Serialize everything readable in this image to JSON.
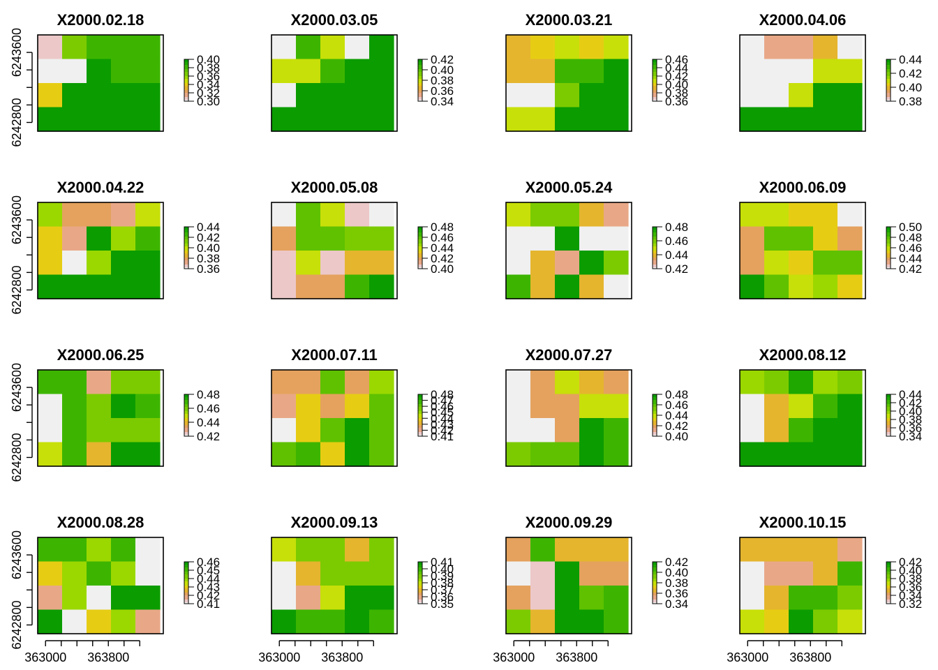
{
  "palette": [
    "#F0F0F0",
    "#ECC8C8",
    "#E8A887",
    "#E4A25E",
    "#E5B52E",
    "#E6CD14",
    "#C7E009",
    "#9BD800",
    "#7CCB00",
    "#5FC100",
    "#3DB500",
    "#1EA800",
    "#0B9C00"
  ],
  "chart_data": {
    "type": "heatmap",
    "layout": {
      "rows": 4,
      "cols": 4
    },
    "xlim": [
      362900,
      364500
    ],
    "ylim": [
      6242700,
      6243800
    ],
    "x_ticks": [
      363000,
      363200,
      363400,
      363600,
      363800,
      364000,
      364200
    ],
    "x_tick_labels": [
      "363000",
      "363800"
    ],
    "y_ticks": [
      6242800,
      6243000,
      6243200,
      6243400,
      6243600
    ],
    "y_tick_labels": [
      "6242800",
      "6243600"
    ],
    "panels": [
      {
        "title": "X2000.02.18",
        "legend": [
          "0.40",
          "0.38",
          "0.36",
          "0.34",
          "0.32",
          "0.30"
        ],
        "values": [
          [
            0.31,
            0.37,
            0.38,
            0.38,
            0.38
          ],
          [
            0.3,
            0.3,
            0.4,
            0.38,
            0.38
          ],
          [
            0.34,
            0.41,
            0.4,
            0.45,
            0.46
          ],
          [
            0.42,
            0.41,
            0.46,
            0.48,
            0.46
          ]
        ]
      },
      {
        "title": "X2000.03.05",
        "legend": [
          "0.42",
          "0.40",
          "0.38",
          "0.36",
          "0.34"
        ],
        "values": [
          [
            0.33,
            0.41,
            0.38,
            0.34,
            0.42
          ],
          [
            0.38,
            0.38,
            0.41,
            0.45,
            0.46
          ],
          [
            0.34,
            0.45,
            0.45,
            0.44,
            0.44
          ],
          [
            0.46,
            0.46,
            0.46,
            0.46,
            0.43
          ]
        ]
      },
      {
        "title": "X2000.03.21",
        "legend": [
          "0.46",
          "0.44",
          "0.42",
          "0.40",
          "0.38",
          "0.36"
        ],
        "values": [
          [
            0.39,
            0.4,
            0.41,
            0.4,
            0.41
          ],
          [
            0.39,
            0.39,
            0.44,
            0.44,
            0.46
          ],
          [
            0.35,
            0.35,
            0.43,
            0.48,
            0.46
          ],
          [
            0.41,
            0.41,
            0.46,
            0.47,
            0.47
          ]
        ]
      },
      {
        "title": "X2000.04.06",
        "legend": [
          "0.44",
          "0.42",
          "0.40",
          "0.38"
        ],
        "values": [
          [
            0.37,
            0.39,
            0.39,
            0.4,
            0.38
          ],
          [
            0.37,
            0.38,
            0.38,
            0.41,
            0.41
          ],
          [
            0.37,
            0.38,
            0.41,
            0.44,
            0.44
          ],
          [
            0.46,
            0.45,
            0.45,
            0.47,
            0.46
          ]
        ]
      },
      {
        "title": "X2000.04.22",
        "legend": [
          "0.44",
          "0.42",
          "0.40",
          "0.38",
          "0.36"
        ],
        "values": [
          [
            0.41,
            0.38,
            0.38,
            0.37,
            0.4
          ],
          [
            0.39,
            0.37,
            0.44,
            0.41,
            0.43
          ],
          [
            0.39,
            0.36,
            0.41,
            0.44,
            0.46
          ],
          [
            0.46,
            0.44,
            0.44,
            0.47,
            0.47
          ]
        ]
      },
      {
        "title": "X2000.05.08",
        "legend": [
          "0.48",
          "0.46",
          "0.44",
          "0.42",
          "0.40"
        ],
        "values": [
          [
            0.39,
            0.46,
            0.44,
            0.41,
            0.4
          ],
          [
            0.42,
            0.46,
            0.46,
            0.45,
            0.45
          ],
          [
            0.41,
            0.44,
            0.41,
            0.43,
            0.43
          ],
          [
            0.41,
            0.42,
            0.42,
            0.47,
            0.48
          ]
        ]
      },
      {
        "title": "X2000.05.24",
        "legend": [
          "0.48",
          "0.46",
          "0.44",
          "0.42"
        ],
        "values": [
          [
            0.45,
            0.46,
            0.46,
            0.44,
            0.43
          ],
          [
            0.42,
            0.4,
            0.48,
            0.42,
            0.42
          ],
          [
            0.42,
            0.44,
            0.43,
            0.48,
            0.46
          ],
          [
            0.47,
            0.44,
            0.48,
            0.44,
            0.42
          ]
        ]
      },
      {
        "title": "X2000.06.09",
        "legend": [
          "0.50",
          "0.48",
          "0.46",
          "0.44",
          "0.42"
        ],
        "values": [
          [
            0.46,
            0.46,
            0.45,
            0.45,
            0.41
          ],
          [
            0.44,
            0.48,
            0.48,
            0.45,
            0.44
          ],
          [
            0.44,
            0.46,
            0.45,
            0.48,
            0.48
          ],
          [
            0.5,
            0.48,
            0.46,
            0.47,
            0.45
          ]
        ]
      },
      {
        "title": "X2000.06.25",
        "legend": [
          "0.48",
          "0.46",
          "0.44",
          "0.42"
        ],
        "values": [
          [
            0.47,
            0.47,
            0.43,
            0.46,
            0.46
          ],
          [
            0.41,
            0.47,
            0.46,
            0.48,
            0.47
          ],
          [
            0.41,
            0.47,
            0.46,
            0.46,
            0.46
          ],
          [
            0.45,
            0.47,
            0.44,
            0.48,
            0.48
          ]
        ]
      },
      {
        "title": "X2000.07.11",
        "legend": [
          "0.48",
          "0.47",
          "0.46",
          "0.45",
          "0.44",
          "0.43",
          "0.42",
          "0.41"
        ],
        "values": [
          [
            0.43,
            0.43,
            0.46,
            0.43,
            0.45
          ],
          [
            0.42,
            0.44,
            0.43,
            0.44,
            0.46
          ],
          [
            0.41,
            0.44,
            0.46,
            0.48,
            0.46
          ],
          [
            0.46,
            0.47,
            0.44,
            0.48,
            0.46
          ]
        ]
      },
      {
        "title": "X2000.07.27",
        "legend": [
          "0.48",
          "0.46",
          "0.44",
          "0.42",
          "0.40"
        ],
        "values": [
          [
            0.39,
            0.42,
            0.44,
            0.43,
            0.42
          ],
          [
            0.4,
            0.42,
            0.42,
            0.44,
            0.44
          ],
          [
            0.4,
            0.4,
            0.42,
            0.48,
            0.47
          ],
          [
            0.45,
            0.46,
            0.46,
            0.48,
            0.47
          ]
        ]
      },
      {
        "title": "X2000.08.12",
        "legend": [
          "0.44",
          "0.42",
          "0.40",
          "0.38",
          "0.36",
          "0.34"
        ],
        "values": [
          [
            0.4,
            0.41,
            0.43,
            0.4,
            0.41
          ],
          [
            0.33,
            0.37,
            0.39,
            0.42,
            0.45
          ],
          [
            0.33,
            0.37,
            0.42,
            0.46,
            0.46
          ],
          [
            0.45,
            0.45,
            0.46,
            0.46,
            0.47
          ]
        ]
      },
      {
        "title": "X2000.08.28",
        "legend": [
          "0.46",
          "0.45",
          "0.44",
          "0.43",
          "0.42",
          "0.41"
        ],
        "values": [
          [
            0.45,
            0.45,
            0.44,
            0.45,
            0.41
          ],
          [
            0.43,
            0.44,
            0.45,
            0.44,
            0.41
          ],
          [
            0.42,
            0.44,
            0.4,
            0.46,
            0.46
          ],
          [
            0.46,
            0.41,
            0.43,
            0.44,
            0.42
          ]
        ]
      },
      {
        "title": "X2000.09.13",
        "legend": [
          "0.41",
          "0.40",
          "0.39",
          "0.38",
          "0.37",
          "0.36",
          "0.35"
        ],
        "values": [
          [
            0.38,
            0.39,
            0.39,
            0.37,
            0.39
          ],
          [
            0.35,
            0.37,
            0.39,
            0.39,
            0.39
          ],
          [
            0.34,
            0.36,
            0.38,
            0.41,
            0.41
          ],
          [
            0.41,
            0.4,
            0.4,
            0.41,
            0.4
          ]
        ]
      },
      {
        "title": "X2000.09.29",
        "legend": [
          "0.42",
          "0.40",
          "0.38",
          "0.36",
          "0.34"
        ],
        "values": [
          [
            0.36,
            0.41,
            0.37,
            0.37,
            0.37
          ],
          [
            0.33,
            0.35,
            0.42,
            0.36,
            0.36
          ],
          [
            0.36,
            0.35,
            0.42,
            0.4,
            0.41
          ],
          [
            0.39,
            0.37,
            0.42,
            0.42,
            0.41
          ]
        ]
      },
      {
        "title": "X2000.10.15",
        "legend": [
          "0.42",
          "0.40",
          "0.38",
          "0.36",
          "0.34",
          "0.32"
        ],
        "values": [
          [
            0.35,
            0.35,
            0.35,
            0.35,
            0.34
          ],
          [
            0.32,
            0.34,
            0.34,
            0.35,
            0.4
          ],
          [
            0.31,
            0.35,
            0.4,
            0.4,
            0.39
          ],
          [
            0.37,
            0.36,
            0.42,
            0.39,
            0.37
          ]
        ]
      }
    ]
  }
}
